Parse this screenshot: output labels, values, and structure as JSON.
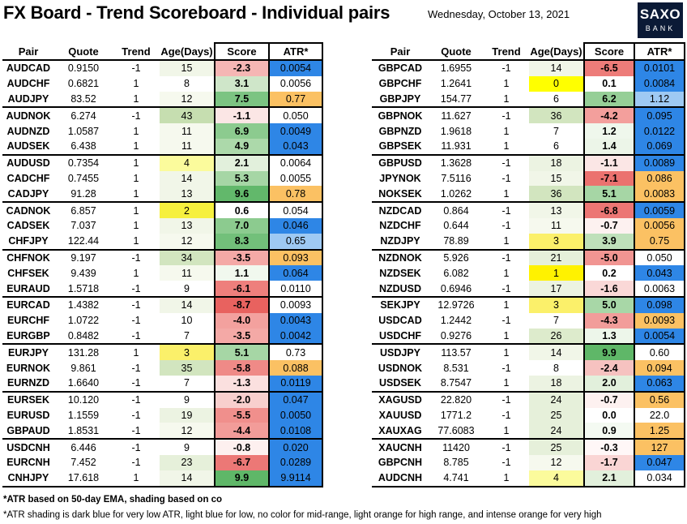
{
  "header": {
    "title": "FX Board - Trend Scoreboard - Individual pairs",
    "date": "Wednesday, October 13, 2021",
    "logo_line1": "SAXO",
    "logo_line2": "BANK"
  },
  "columns": [
    "Pair",
    "Quote",
    "Trend",
    "Age(Days)",
    "Score",
    "ATR*"
  ],
  "left_table": [
    {
      "pair": "AUDCAD",
      "quote": "0.9150",
      "trend": "-1",
      "age": "15",
      "score": "-2.3",
      "atr": "0.0054",
      "age_bg": "#f1f6e8",
      "score_bg": "#f5b6b4",
      "atr_bg": "#2e86e6"
    },
    {
      "pair": "AUDCHF",
      "quote": "0.6821",
      "trend": "1",
      "age": "8",
      "score": "3.1",
      "atr": "0.0056",
      "age_bg": "#ffffff",
      "score_bg": "#cfe6c9",
      "atr_bg": "#ffffff"
    },
    {
      "pair": "AUDJPY",
      "quote": "83.52",
      "trend": "1",
      "age": "12",
      "score": "7.5",
      "atr": "0.77",
      "age_bg": "#f6f9ee",
      "score_bg": "#7cc482",
      "atr_bg": "#fbc163"
    },
    {
      "pair": "AUDNOK",
      "quote": "6.274",
      "trend": "-1",
      "age": "43",
      "score": "-1.1",
      "atr": "0.050",
      "age_bg": "#c6deb0",
      "score_bg": "#fbe6e5",
      "atr_bg": "#ffffff"
    },
    {
      "pair": "AUDNZD",
      "quote": "1.0587",
      "trend": "1",
      "age": "11",
      "score": "6.9",
      "atr": "0.0049",
      "age_bg": "#f6f9ee",
      "score_bg": "#8ccb8f",
      "atr_bg": "#2e86e6"
    },
    {
      "pair": "AUDSEK",
      "quote": "6.438",
      "trend": "1",
      "age": "11",
      "score": "4.9",
      "atr": "0.043",
      "age_bg": "#f6f9ee",
      "score_bg": "#acd9aa",
      "atr_bg": "#2e86e6"
    },
    {
      "pair": "AUDUSD",
      "quote": "0.7354",
      "trend": "1",
      "age": "4",
      "score": "2.1",
      "atr": "0.0064",
      "age_bg": "#fbfb9c",
      "score_bg": "#e2f0dc",
      "atr_bg": "#ffffff"
    },
    {
      "pair": "CADCHF",
      "quote": "0.7455",
      "trend": "1",
      "age": "14",
      "score": "5.3",
      "atr": "0.0055",
      "age_bg": "#f1f6e8",
      "score_bg": "#a6d6a5",
      "atr_bg": "#ffffff"
    },
    {
      "pair": "CADJPY",
      "quote": "91.28",
      "trend": "1",
      "age": "13",
      "score": "9.6",
      "atr": "0.78",
      "age_bg": "#f1f6e8",
      "score_bg": "#62b86b",
      "atr_bg": "#fbc163"
    },
    {
      "pair": "CADNOK",
      "quote": "6.857",
      "trend": "1",
      "age": "2",
      "score": "0.6",
      "atr": "0.054",
      "age_bg": "#f6f03e",
      "score_bg": "#ffffff",
      "atr_bg": "#ffffff"
    },
    {
      "pair": "CADSEK",
      "quote": "7.037",
      "trend": "1",
      "age": "13",
      "score": "7.0",
      "atr": "0.046",
      "age_bg": "#f1f6e8",
      "score_bg": "#8ccb8f",
      "atr_bg": "#2e86e6"
    },
    {
      "pair": "CHFJPY",
      "quote": "122.44",
      "trend": "1",
      "age": "12",
      "score": "8.3",
      "atr": "0.65",
      "age_bg": "#f6f9ee",
      "score_bg": "#72c07a",
      "atr_bg": "#9ec9f3"
    },
    {
      "pair": "CHFNOK",
      "quote": "9.197",
      "trend": "-1",
      "age": "34",
      "score": "-3.5",
      "atr": "0.093",
      "age_bg": "#d2e5bf",
      "score_bg": "#f4a9a6",
      "atr_bg": "#fbc163"
    },
    {
      "pair": "CHFSEK",
      "quote": "9.439",
      "trend": "1",
      "age": "11",
      "score": "1.1",
      "atr": "0.064",
      "age_bg": "#f6f9ee",
      "score_bg": "#f1f8ee",
      "atr_bg": "#2e86e6"
    },
    {
      "pair": "EURAUD",
      "quote": "1.5718",
      "trend": "-1",
      "age": "9",
      "score": "-6.1",
      "atr": "0.0110",
      "age_bg": "#ffffff",
      "score_bg": "#ee7f7c",
      "atr_bg": "#ffffff"
    },
    {
      "pair": "EURCAD",
      "quote": "1.4382",
      "trend": "-1",
      "age": "14",
      "score": "-8.7",
      "atr": "0.0093",
      "age_bg": "#f1f6e8",
      "score_bg": "#e8625f",
      "atr_bg": "#ffffff"
    },
    {
      "pair": "EURCHF",
      "quote": "1.0722",
      "trend": "-1",
      "age": "10",
      "score": "-4.0",
      "atr": "0.0043",
      "age_bg": "#ffffff",
      "score_bg": "#f3a19e",
      "atr_bg": "#2e86e6"
    },
    {
      "pair": "EURGBP",
      "quote": "0.8482",
      "trend": "-1",
      "age": "7",
      "score": "-3.5",
      "atr": "0.0042",
      "age_bg": "#ffffff",
      "score_bg": "#f4a9a6",
      "atr_bg": "#2e86e6"
    },
    {
      "pair": "EURJPY",
      "quote": "131.28",
      "trend": "1",
      "age": "3",
      "score": "5.1",
      "atr": "0.73",
      "age_bg": "#fbf06a",
      "score_bg": "#a6d6a5",
      "atr_bg": "#ffffff"
    },
    {
      "pair": "EURNOK",
      "quote": "9.861",
      "trend": "-1",
      "age": "35",
      "score": "-5.8",
      "atr": "0.088",
      "age_bg": "#d2e5bf",
      "score_bg": "#ef8a87",
      "atr_bg": "#fbc163"
    },
    {
      "pair": "EURNZD",
      "quote": "1.6640",
      "trend": "-1",
      "age": "7",
      "score": "-1.3",
      "atr": "0.0119",
      "age_bg": "#ffffff",
      "score_bg": "#fbe0df",
      "atr_bg": "#2e86e6"
    },
    {
      "pair": "EURSEK",
      "quote": "10.120",
      "trend": "-1",
      "age": "9",
      "score": "-2.0",
      "atr": "0.047",
      "age_bg": "#ffffff",
      "score_bg": "#f8cfcd",
      "atr_bg": "#2e86e6"
    },
    {
      "pair": "EURUSD",
      "quote": "1.1559",
      "trend": "-1",
      "age": "19",
      "score": "-5.5",
      "atr": "0.0050",
      "age_bg": "#ecf3e2",
      "score_bg": "#f08f8c",
      "atr_bg": "#2e86e6"
    },
    {
      "pair": "GBPAUD",
      "quote": "1.8531",
      "trend": "-1",
      "age": "12",
      "score": "-4.4",
      "atr": "0.0108",
      "age_bg": "#f6f9ee",
      "score_bg": "#f29c99",
      "atr_bg": "#2e86e6"
    },
    {
      "pair": "USDCNH",
      "quote": "6.446",
      "trend": "-1",
      "age": "9",
      "score": "-0.8",
      "atr": "0.020",
      "age_bg": "#ffffff",
      "score_bg": "#fdf0ef",
      "atr_bg": "#2e86e6"
    },
    {
      "pair": "EURCNH",
      "quote": "7.452",
      "trend": "-1",
      "age": "23",
      "score": "-6.7",
      "atr": "0.0289",
      "age_bg": "#e6f0da",
      "score_bg": "#ec7876",
      "atr_bg": "#2e86e6"
    },
    {
      "pair": "CNHJPY",
      "quote": "17.618",
      "trend": "1",
      "age": "14",
      "score": "9.9",
      "atr": "9.9114",
      "age_bg": "#f1f6e8",
      "score_bg": "#5fb768",
      "atr_bg": "#2e86e6"
    }
  ],
  "right_table": [
    {
      "pair": "GBPCAD",
      "quote": "1.6955",
      "trend": "-1",
      "age": "14",
      "score": "-6.5",
      "atr": "0.0101",
      "age_bg": "#f1f6e8",
      "score_bg": "#ed7c79",
      "atr_bg": "#2e86e6"
    },
    {
      "pair": "GBPCHF",
      "quote": "1.2641",
      "trend": "1",
      "age": "0",
      "score": "0.1",
      "atr": "0.0084",
      "age_bg": "#ffff00",
      "score_bg": "#ffffff",
      "atr_bg": "#2e86e6"
    },
    {
      "pair": "GBPJPY",
      "quote": "154.77",
      "trend": "1",
      "age": "6",
      "score": "6.2",
      "atr": "1.12",
      "age_bg": "#ffffff",
      "score_bg": "#96cf97",
      "atr_bg": "#9ec9f3"
    },
    {
      "pair": "GBPNOK",
      "quote": "11.627",
      "trend": "-1",
      "age": "36",
      "score": "-4.2",
      "atr": "0.095",
      "age_bg": "#d2e5bf",
      "score_bg": "#f39f9c",
      "atr_bg": "#2e86e6"
    },
    {
      "pair": "GBPNZD",
      "quote": "1.9618",
      "trend": "1",
      "age": "7",
      "score": "1.2",
      "atr": "0.0122",
      "age_bg": "#ffffff",
      "score_bg": "#eff7ec",
      "atr_bg": "#2e86e6"
    },
    {
      "pair": "GBPSEK",
      "quote": "11.931",
      "trend": "1",
      "age": "6",
      "score": "1.4",
      "atr": "0.069",
      "age_bg": "#ffffff",
      "score_bg": "#ecf5e8",
      "atr_bg": "#2e86e6"
    },
    {
      "pair": "GBPUSD",
      "quote": "1.3628",
      "trend": "-1",
      "age": "18",
      "score": "-1.1",
      "atr": "0.0089",
      "age_bg": "#ecf3e2",
      "score_bg": "#fbe6e5",
      "atr_bg": "#2e86e6"
    },
    {
      "pair": "JPYNOK",
      "quote": "7.5116",
      "trend": "-1",
      "age": "15",
      "score": "-7.1",
      "atr": "0.086",
      "age_bg": "#f1f6e8",
      "score_bg": "#eb726f",
      "atr_bg": "#fbc163"
    },
    {
      "pair": "NOKSEK",
      "quote": "1.0262",
      "trend": "1",
      "age": "36",
      "score": "5.1",
      "atr": "0.0083",
      "age_bg": "#d2e5bf",
      "score_bg": "#a6d6a5",
      "atr_bg": "#fbc163"
    },
    {
      "pair": "NZDCAD",
      "quote": "0.864",
      "trend": "-1",
      "age": "13",
      "score": "-6.8",
      "atr": "0.0059",
      "age_bg": "#f1f6e8",
      "score_bg": "#ec7674",
      "atr_bg": "#2e86e6"
    },
    {
      "pair": "NZDCHF",
      "quote": "0.644",
      "trend": "-1",
      "age": "11",
      "score": "-0.7",
      "atr": "0.0056",
      "age_bg": "#f6f9ee",
      "score_bg": "#fdf1f0",
      "atr_bg": "#fbc163"
    },
    {
      "pair": "NZDJPY",
      "quote": "78.89",
      "trend": "1",
      "age": "3",
      "score": "3.9",
      "atr": "0.75",
      "age_bg": "#fbf06a",
      "score_bg": "#bfe0ba",
      "atr_bg": "#fbc163"
    },
    {
      "pair": "NZDNOK",
      "quote": "5.926",
      "trend": "-1",
      "age": "21",
      "score": "-5.0",
      "atr": "0.050",
      "age_bg": "#e6f0da",
      "score_bg": "#f19592",
      "atr_bg": "#ffffff"
    },
    {
      "pair": "NZDSEK",
      "quote": "6.082",
      "trend": "1",
      "age": "1",
      "score": "0.2",
      "atr": "0.043",
      "age_bg": "#fff200",
      "score_bg": "#ffffff",
      "atr_bg": "#2e86e6"
    },
    {
      "pair": "NZDUSD",
      "quote": "0.6946",
      "trend": "-1",
      "age": "17",
      "score": "-1.6",
      "atr": "0.0063",
      "age_bg": "#ecf3e2",
      "score_bg": "#fad8d7",
      "atr_bg": "#ffffff"
    },
    {
      "pair": "SEKJPY",
      "quote": "12.9726",
      "trend": "1",
      "age": "3",
      "score": "5.0",
      "atr": "0.098",
      "age_bg": "#fbf06a",
      "score_bg": "#a8d7a7",
      "atr_bg": "#2e86e6"
    },
    {
      "pair": "USDCAD",
      "quote": "1.2442",
      "trend": "-1",
      "age": "7",
      "score": "-4.3",
      "atr": "0.0093",
      "age_bg": "#ffffff",
      "score_bg": "#f29d9a",
      "atr_bg": "#fbc163"
    },
    {
      "pair": "USDCHF",
      "quote": "0.9276",
      "trend": "1",
      "age": "26",
      "score": "1.3",
      "atr": "0.0054",
      "age_bg": "#ddebcc",
      "score_bg": "#edf6ea",
      "atr_bg": "#2e86e6"
    },
    {
      "pair": "USDJPY",
      "quote": "113.57",
      "trend": "1",
      "age": "14",
      "score": "9.9",
      "atr": "0.60",
      "age_bg": "#f1f6e8",
      "score_bg": "#5fb768",
      "atr_bg": "#ffffff"
    },
    {
      "pair": "USDNOK",
      "quote": "8.531",
      "trend": "-1",
      "age": "8",
      "score": "-2.4",
      "atr": "0.094",
      "age_bg": "#ffffff",
      "score_bg": "#f6c2c0",
      "atr_bg": "#fbc163"
    },
    {
      "pair": "USDSEK",
      "quote": "8.7547",
      "trend": "1",
      "age": "18",
      "score": "2.0",
      "atr": "0.063",
      "age_bg": "#ecf3e2",
      "score_bg": "#e2f0dc",
      "atr_bg": "#2e86e6"
    },
    {
      "pair": "XAGUSD",
      "quote": "22.820",
      "trend": "-1",
      "age": "24",
      "score": "-0.7",
      "atr": "0.56",
      "age_bg": "#e6f0da",
      "score_bg": "#fdf1f0",
      "atr_bg": "#fbc163"
    },
    {
      "pair": "XAUUSD",
      "quote": "1771.2",
      "trend": "-1",
      "age": "25",
      "score": "0.0",
      "atr": "22.0",
      "age_bg": "#e6f0da",
      "score_bg": "#ffffff",
      "atr_bg": "#ffffff"
    },
    {
      "pair": "XAUXAG",
      "quote": "77.6083",
      "trend": "1",
      "age": "24",
      "score": "0.9",
      "atr": "1.25",
      "age_bg": "#e6f0da",
      "score_bg": "#f4faf2",
      "atr_bg": "#fbc163"
    },
    {
      "pair": "XAUCNH",
      "quote": "11420",
      "trend": "-1",
      "age": "25",
      "score": "-0.3",
      "atr": "127",
      "age_bg": "#e6f0da",
      "score_bg": "#fff7f7",
      "atr_bg": "#fbc163"
    },
    {
      "pair": "GBPCNH",
      "quote": "8.785",
      "trend": "-1",
      "age": "12",
      "score": "-1.7",
      "atr": "0.047",
      "age_bg": "#f6f9ee",
      "score_bg": "#fad5d4",
      "atr_bg": "#2e86e6"
    },
    {
      "pair": "AUDCNH",
      "quote": "4.741",
      "trend": "1",
      "age": "4",
      "score": "2.1",
      "atr": "0.034",
      "age_bg": "#fbfb9c",
      "score_bg": "#e2f0dc",
      "atr_bg": "#ffffff"
    }
  ],
  "footnotes": {
    "line1": "*ATR based on 50-day EMA, shading based on co",
    "line2": "*ATR shading is dark blue for very low ATR, light blue for low, no color for mid-range, light orange for high range, and intense orange for very high"
  }
}
